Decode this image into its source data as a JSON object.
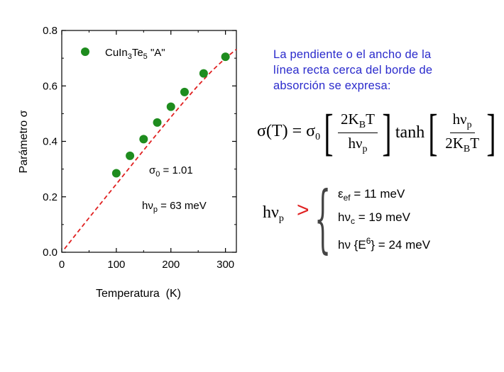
{
  "chart_data": {
    "type": "scatter",
    "xlabel": "Temperatura  (K)",
    "ylabel": "Parámetro σ",
    "xlim": [
      0,
      320
    ],
    "ylim": [
      0.0,
      0.8
    ],
    "xticks": [
      0,
      100,
      200,
      300
    ],
    "xtick_labels": [
      "0",
      "100",
      "200",
      "300"
    ],
    "yticks": [
      0.0,
      0.2,
      0.4,
      0.6,
      0.8
    ],
    "ytick_labels": [
      "0.0",
      "0.2",
      "0.4",
      "0.6",
      "0.8"
    ],
    "grid": false,
    "legend_position": "top-left",
    "series": [
      {
        "name": "CuIn3Te5 \"A\"",
        "legend_main": "CuIn",
        "legend_sub1": "3",
        "legend_mid": "Te",
        "legend_sub2": "5",
        "legend_tail": " \"A\"",
        "kind": "markers",
        "color": "#1e8c1e",
        "x": [
          100,
          125,
          150,
          175,
          200,
          225,
          260,
          300
        ],
        "y": [
          0.285,
          0.348,
          0.408,
          0.468,
          0.525,
          0.578,
          0.645,
          0.705
        ]
      },
      {
        "kind": "fit-line",
        "color": "#e02020",
        "x": [
          5,
          25,
          50,
          75,
          100,
          125,
          150,
          175,
          200,
          225,
          250,
          275,
          300,
          320
        ],
        "y": [
          0.012,
          0.062,
          0.124,
          0.185,
          0.246,
          0.307,
          0.368,
          0.428,
          0.488,
          0.546,
          0.602,
          0.654,
          0.7,
          0.732
        ]
      }
    ],
    "annotations": {
      "sigma0_main": "σ",
      "sigma0_sub": "0",
      "sigma0_tail": " = 1.01",
      "hvp_main": "hν",
      "hvp_sub": "p",
      "hvp_tail": " = 63 meV"
    }
  },
  "description": {
    "line1": "La pendiente o el ancho de la",
    "line2": "línea recta cerca del borde de",
    "line3": "absorción se expresa:"
  },
  "formula": {
    "lhs": "σ(T) = σ",
    "lhs_sub": "0",
    "frac1_num_main": "2K",
    "frac1_num_sub": "B",
    "frac1_num_tail": "T",
    "frac1_den_main": "hν",
    "frac1_den_sub": "p",
    "func": "tanh",
    "frac2_num_main": "hν",
    "frac2_num_sub": "p",
    "frac2_den_main": "2K",
    "frac2_den_sub": "B",
    "frac2_den_tail": "T"
  },
  "hv_label": {
    "main": "hν",
    "sub": "p",
    "gt": ">"
  },
  "phonons": [
    {
      "main": "ε",
      "sub": "ef",
      "tail": " = 11 meV"
    },
    {
      "main": "hν",
      "sub": "c",
      "tail": " = 19 meV"
    },
    {
      "main": "hν {E",
      "sup": "6",
      "tail": "} = 24 meV"
    }
  ]
}
